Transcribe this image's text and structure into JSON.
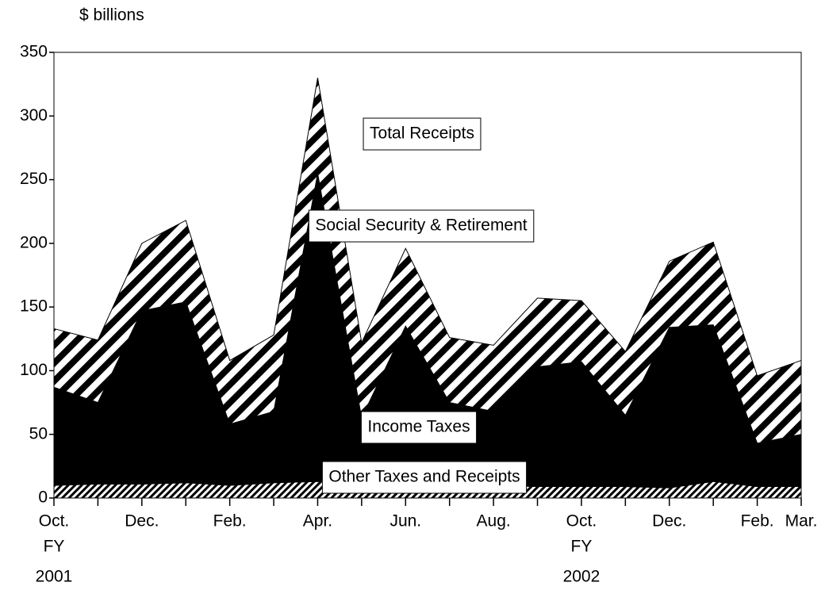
{
  "chart_data": {
    "type": "stacked_area",
    "y_axis_label": "$ billions",
    "annotation": "Total Receipts",
    "fy_label": "FY",
    "fiscal_years": [
      "2001",
      "2002"
    ],
    "categories": [
      "Oct.",
      null,
      "Dec.",
      null,
      "Feb.",
      null,
      "Apr.",
      null,
      "Jun.",
      null,
      "Aug.",
      null,
      "Oct.",
      null,
      "Dec.",
      null,
      "Feb.",
      "Mar."
    ],
    "series": [
      {
        "name": "Other Taxes and Receipts",
        "color": "#000000",
        "pattern": "fine-hatch",
        "values": [
          10,
          11,
          11,
          12,
          10,
          12,
          13,
          11,
          11,
          10,
          10,
          9,
          9,
          9,
          8,
          13,
          9,
          9
        ]
      },
      {
        "name": "Income Taxes",
        "color": "#000000",
        "pattern": "solid",
        "values": [
          77,
          64,
          136,
          142,
          48,
          56,
          242,
          52,
          124,
          65,
          58,
          94,
          98,
          56,
          126,
          123,
          34,
          41
        ]
      },
      {
        "name": "Social Security & Retirement",
        "color": "#000000",
        "pattern": "diagonal-stripes",
        "values": [
          46,
          49,
          53,
          64,
          50,
          60,
          75,
          59,
          61,
          51,
          52,
          54,
          48,
          50,
          52,
          65,
          53,
          58
        ]
      }
    ],
    "ylim": [
      0,
      350
    ],
    "yticks": [
      0,
      50,
      100,
      150,
      200,
      250,
      300,
      350
    ]
  }
}
